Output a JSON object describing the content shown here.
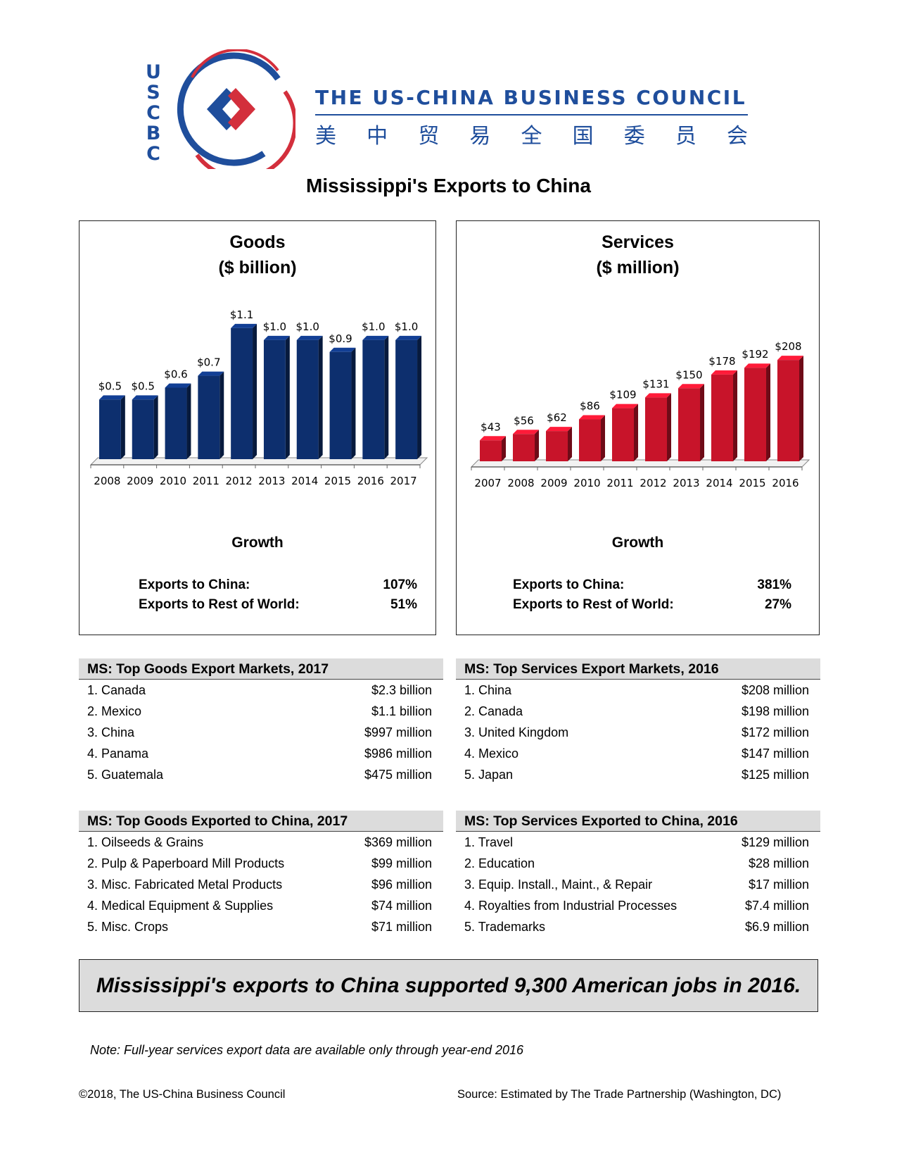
{
  "header": {
    "logo_letters": [
      "U",
      "S",
      "C",
      "B",
      "C"
    ],
    "org_name_en": "THE US-CHINA BUSINESS COUNCIL",
    "org_name_zh": [
      "美",
      "中",
      "贸",
      "易",
      "全",
      "国",
      "委",
      "员",
      "会"
    ],
    "colors": {
      "blue": "#1f4e9c",
      "red": "#d32f3c"
    }
  },
  "page_title": "Mississippi's Exports to China",
  "chart_data": [
    {
      "type": "bar",
      "title": "Goods",
      "subtitle": "($ billion)",
      "categories": [
        "2008",
        "2009",
        "2010",
        "2011",
        "2012",
        "2013",
        "2014",
        "2015",
        "2016",
        "2017"
      ],
      "values": [
        0.5,
        0.5,
        0.6,
        0.7,
        1.1,
        1.0,
        1.0,
        0.9,
        1.0,
        1.0
      ],
      "data_labels": [
        "$0.5",
        "$0.5",
        "$0.6",
        "$0.7",
        "$1.1",
        "$1.0",
        "$1.0",
        "$0.9",
        "$1.0",
        "$1.0"
      ],
      "ylim": [
        0,
        1.2
      ],
      "color": "#0d2f6e",
      "grid": false
    },
    {
      "type": "bar",
      "title": "Services",
      "subtitle": "($ million)",
      "categories": [
        "2007",
        "2008",
        "2009",
        "2010",
        "2011",
        "2012",
        "2013",
        "2014",
        "2015",
        "2016"
      ],
      "values": [
        43,
        56,
        62,
        86,
        109,
        131,
        150,
        178,
        192,
        208
      ],
      "data_labels": [
        "$43",
        "$56",
        "$62",
        "$86",
        "$109",
        "$131",
        "$150",
        "$178",
        "$192",
        "$208"
      ],
      "ylim": [
        0,
        240
      ],
      "color": "#c8142a",
      "grid": false
    }
  ],
  "goods_growth": {
    "heading": "Growth",
    "rows": [
      {
        "label": "Exports to China:",
        "value": "107%"
      },
      {
        "label": "Exports to Rest of World:",
        "value": "51%"
      }
    ]
  },
  "services_growth": {
    "heading": "Growth",
    "rows": [
      {
        "label": "Exports to China:",
        "value": "381%"
      },
      {
        "label": "Exports to Rest of World:",
        "value": "27%"
      }
    ]
  },
  "goods_markets": {
    "title": "MS: Top Goods Export Markets, 2017",
    "rows": [
      {
        "name": "1. Canada",
        "value": "$2.3 billion"
      },
      {
        "name": "2. Mexico",
        "value": "$1.1 billion"
      },
      {
        "name": "3. China",
        "value": "$997 million"
      },
      {
        "name": "4. Panama",
        "value": "$986 million"
      },
      {
        "name": "5. Guatemala",
        "value": "$475 million"
      }
    ]
  },
  "services_markets": {
    "title": "MS: Top Services Export Markets, 2016",
    "rows": [
      {
        "name": "1. China",
        "value": "$208 million"
      },
      {
        "name": "2. Canada",
        "value": "$198 million"
      },
      {
        "name": "3. United Kingdom",
        "value": "$172 million"
      },
      {
        "name": "4. Mexico",
        "value": "$147 million"
      },
      {
        "name": "5. Japan",
        "value": "$125 million"
      }
    ]
  },
  "goods_products": {
    "title": "MS: Top Goods Exported to China, 2017",
    "rows": [
      {
        "name": "1. Oilseeds & Grains",
        "value": "$369 million"
      },
      {
        "name": "2. Pulp & Paperboard Mill Products",
        "value": "$99 million"
      },
      {
        "name": "3. Misc. Fabricated Metal Products",
        "value": "$96 million"
      },
      {
        "name": "4. Medical Equipment & Supplies",
        "value": "$74 million"
      },
      {
        "name": "5. Misc. Crops",
        "value": "$71 million"
      }
    ]
  },
  "services_products": {
    "title": "MS: Top Services Exported to China, 2016",
    "rows": [
      {
        "name": "1. Travel",
        "value": "$129 million"
      },
      {
        "name": "2. Education",
        "value": "$28 million"
      },
      {
        "name": "3. Equip. Install., Maint., & Repair",
        "value": "$17 million"
      },
      {
        "name": "4. Royalties from Industrial Processes",
        "value": "$7.4 million"
      },
      {
        "name": "5. Trademarks",
        "value": "$6.9 million"
      }
    ]
  },
  "callout": "Mississippi's exports to China supported 9,300 American jobs in 2016.",
  "note": "Note: Full-year services export data are available only through year-end 2016",
  "footer": {
    "copyright": "©2018, The US-China Business Council",
    "source": "Source: Estimated by The Trade Partnership (Washington, DC)"
  }
}
